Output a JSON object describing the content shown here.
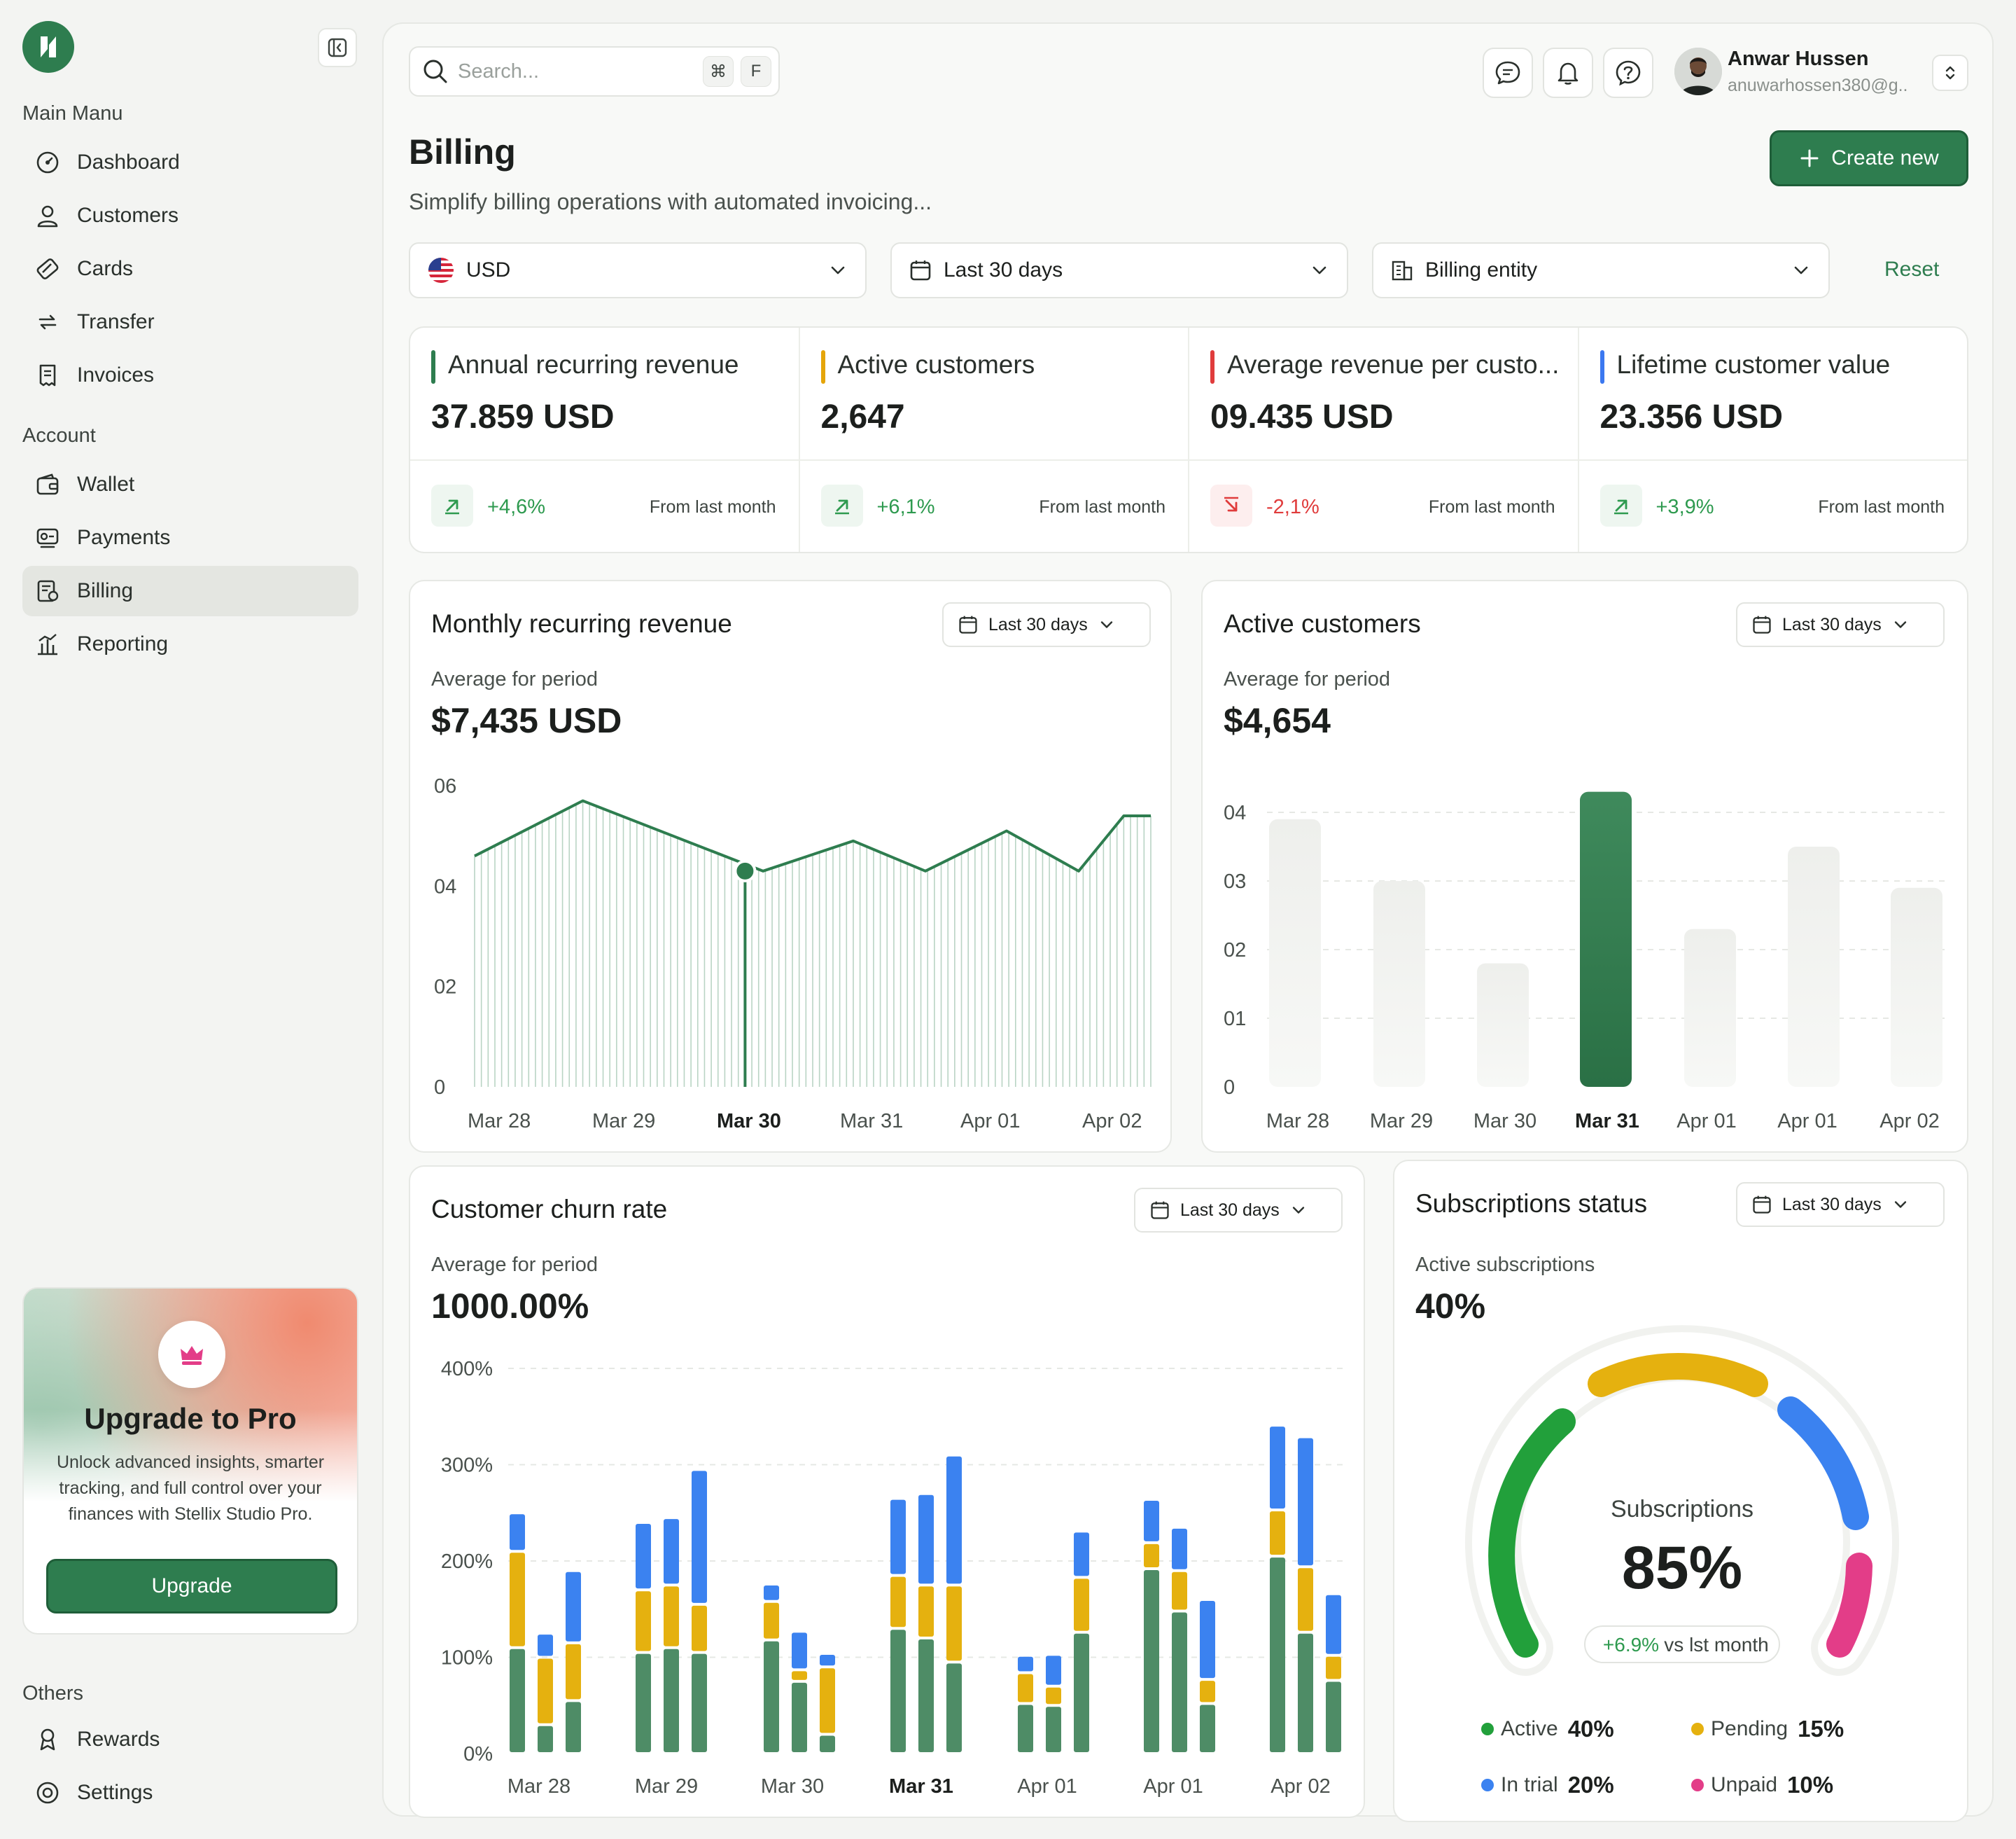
{
  "sidebar": {
    "main_menu_label": "Main Manu",
    "main_items": [
      "Dashboard",
      "Customers",
      "Cards",
      "Transfer",
      "Invoices"
    ],
    "account_label": "Account",
    "account_items": [
      "Wallet",
      "Payments",
      "Billing",
      "Reporting"
    ],
    "active_item": "Billing",
    "others_label": "Others",
    "others_items": [
      "Rewards",
      "Settings"
    ],
    "promo": {
      "title": "Upgrade to Pro",
      "description": "Unlock advanced insights, smarter tracking, and full control over your finances with Stellix Studio Pro.",
      "button": "Upgrade"
    }
  },
  "header": {
    "search_placeholder": "Search...",
    "shortcut_mod": "⌘",
    "shortcut_key": "F",
    "user_name": "Anwar Hussen",
    "user_email": "anuwarhossen380@g.."
  },
  "page": {
    "title": "Billing",
    "subtitle": "Simplify billing operations with automated invoicing...",
    "create_button": "Create new",
    "filters": {
      "currency": "USD",
      "period": "Last 30 days",
      "entity": "Billing entity",
      "reset": "Reset"
    }
  },
  "stats": [
    {
      "label": "Annual recurring revenue",
      "value": "37.859 USD",
      "change": "+4,6%",
      "direction": "up",
      "from": "From last month",
      "accent": "#2e7d4f"
    },
    {
      "label": "Active customers",
      "value": "2,647",
      "change": "+6,1%",
      "direction": "up",
      "from": "From last month",
      "accent": "#e5a50a"
    },
    {
      "label": "Average revenue per custo...",
      "value": "09.435 USD",
      "change": "-2,1%",
      "direction": "down",
      "from": "From last month",
      "accent": "#e03c3c"
    },
    {
      "label": "Lifetime customer value",
      "value": "23.356 USD",
      "change": "+3,9%",
      "direction": "up",
      "from": "From last month",
      "accent": "#3b78f0"
    }
  ],
  "colors": {
    "green": "#2e7d4f",
    "chart_green": "#4e8c66",
    "yellow": "#e5b10f",
    "blue": "#3b82f0",
    "pink": "#e33d88",
    "gauge_green": "#22a03b",
    "up": "#2e9a4f",
    "down": "#e03c3c"
  },
  "mrr": {
    "title": "Monthly recurring revenue",
    "period": "Last 30 days",
    "avg_label": "Average for period",
    "avg_value": "$7,435 USD"
  },
  "active_customers": {
    "title": "Active customers",
    "period": "Last 30 days",
    "avg_label": "Average for period",
    "avg_value": "$4,654"
  },
  "churn": {
    "title": "Customer churn rate",
    "period": "Last 30 days",
    "avg_label": "Average for period",
    "avg_value": "1000.00%"
  },
  "subscriptions": {
    "title": "Subscriptions status",
    "period": "Last 30 days",
    "active_label": "Active subscriptions",
    "active_value": "40%",
    "gauge_label": "Subscriptions",
    "gauge_value": "85%",
    "gauge_change": "+6.9%",
    "gauge_change_suffix": "vs lst month",
    "legend": [
      {
        "label": "Active",
        "value": "40%"
      },
      {
        "label": "Pending",
        "value": "15%"
      },
      {
        "label": "In trial",
        "value": "20%"
      },
      {
        "label": "Unpaid",
        "value": "10%"
      }
    ]
  },
  "chart_data": [
    {
      "type": "line",
      "title": "Monthly recurring revenue",
      "x_ticks": [
        "Mar 28",
        "Mar 29",
        "Mar 30",
        "Mar 31",
        "Apr 01",
        "Apr 02"
      ],
      "highlight_tick": "Mar 30",
      "y_ticks": [
        "06",
        "04",
        "02",
        "0"
      ],
      "ylim": [
        0,
        6
      ],
      "x": [
        0,
        1.2,
        3.2,
        4.2,
        5.0,
        5.9,
        6.7,
        7.2,
        7.5
      ],
      "values": [
        4.6,
        5.7,
        4.3,
        4.9,
        4.3,
        5.1,
        4.3,
        5.4,
        5.4
      ],
      "highlight_point": {
        "x": 3.0,
        "value": 4.3
      }
    },
    {
      "type": "bar",
      "title": "Active customers",
      "categories": [
        "Mar 28",
        "Mar 29",
        "Mar 30",
        "Mar 31",
        "Apr 01",
        "Apr 01",
        "Apr 02"
      ],
      "highlight_category": "Mar 31",
      "values": [
        3.9,
        3.0,
        1.8,
        4.3,
        2.3,
        3.5,
        2.9
      ],
      "y_ticks": [
        "04",
        "03",
        "02",
        "01",
        "0"
      ],
      "ylim": [
        0,
        4
      ]
    },
    {
      "type": "bar",
      "title": "Customer churn rate",
      "stacked": true,
      "categories": [
        "Mar 28",
        "Mar 29",
        "Mar 30",
        "Mar 31",
        "Apr 01",
        "Apr 01",
        "Apr 02"
      ],
      "highlight_category": "Mar 31",
      "y_ticks": [
        "400%",
        "300%",
        "200%",
        "100%",
        "0%"
      ],
      "ylim": [
        0,
        400
      ],
      "groups": [
        [
          [
            110,
            100,
            40
          ],
          [
            30,
            70,
            25
          ],
          [
            55,
            60,
            75
          ]
        ],
        [
          [
            105,
            65,
            70
          ],
          [
            110,
            65,
            70
          ],
          [
            105,
            50,
            140
          ]
        ],
        [
          [
            118,
            40,
            18
          ],
          [
            75,
            12,
            40
          ],
          [
            20,
            70,
            14
          ]
        ],
        [
          [
            130,
            55,
            80
          ],
          [
            120,
            55,
            95
          ],
          [
            95,
            80,
            135
          ]
        ],
        [
          [
            52,
            32,
            18
          ],
          [
            50,
            20,
            33
          ],
          [
            126,
            57,
            48
          ]
        ],
        [
          [
            192,
            27,
            45
          ],
          [
            148,
            42,
            45
          ],
          [
            52,
            25,
            83
          ]
        ],
        [
          [
            205,
            48,
            88
          ],
          [
            126,
            68,
            135
          ],
          [
            76,
            26,
            64
          ]
        ]
      ],
      "series": [
        {
          "name": "green",
          "color": "#4e8c66"
        },
        {
          "name": "yellow",
          "color": "#e5b10f"
        },
        {
          "name": "blue",
          "color": "#3b82f0"
        }
      ]
    }
  ]
}
